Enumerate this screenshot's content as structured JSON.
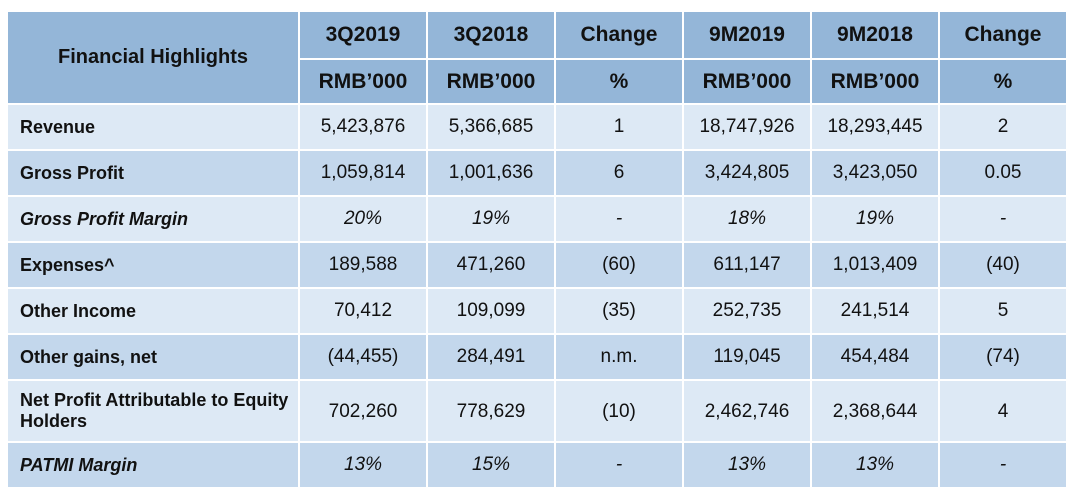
{
  "table": {
    "title": "Financial Highlights",
    "periods": [
      "3Q2019",
      "3Q2018",
      "Change",
      "9M2019",
      "9M2018",
      "Change"
    ],
    "units": [
      "RMB’000",
      "RMB’000",
      "%",
      "RMB’000",
      "RMB’000",
      "%"
    ],
    "rows": [
      {
        "label": "Revenue",
        "values": [
          "5,423,876",
          "5,366,685",
          "1",
          "18,747,926",
          "18,293,445",
          "2"
        ]
      },
      {
        "label": "Gross Profit",
        "values": [
          "1,059,814",
          "1,001,636",
          "6",
          "3,424,805",
          "3,423,050",
          "0.05"
        ]
      },
      {
        "label": "Gross Profit Margin",
        "values": [
          "20%",
          "19%",
          "-",
          "18%",
          "19%",
          "-"
        ]
      },
      {
        "label": "Expenses^",
        "values": [
          "189,588",
          "471,260",
          "(60)",
          "611,147",
          "1,013,409",
          "(40)"
        ]
      },
      {
        "label": "Other Income",
        "values": [
          "70,412",
          "109,099",
          "(35)",
          "252,735",
          "241,514",
          "5"
        ]
      },
      {
        "label": "Other gains, net",
        "values": [
          "(44,455)",
          "284,491",
          "n.m.",
          "119,045",
          "454,484",
          "(74)"
        ]
      },
      {
        "label": "Net Profit Attributable to Equity Holders",
        "values": [
          "702,260",
          "778,629",
          "(10)",
          "2,462,746",
          "2,368,644",
          "4"
        ]
      },
      {
        "label": "PATMI Margin",
        "values": [
          "13%",
          "15%",
          "-",
          "13%",
          "13%",
          "-"
        ]
      }
    ]
  },
  "colors": {
    "header_bg": "#94b6d8",
    "row_light": "#dde9f5",
    "row_mid": "#c3d7ec",
    "border": "#ffffff"
  }
}
